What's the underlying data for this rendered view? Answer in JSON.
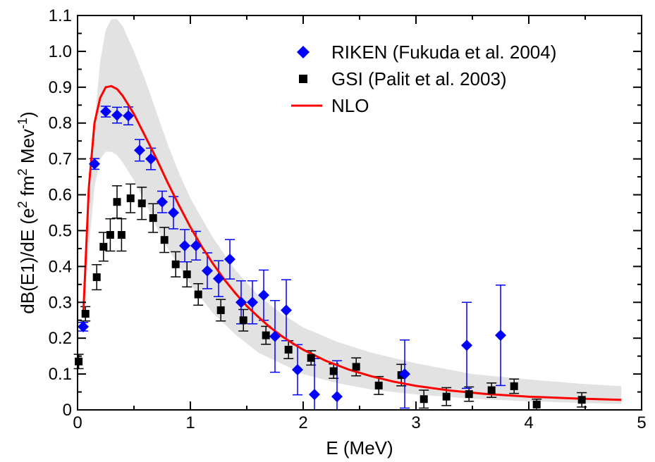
{
  "chart_data": {
    "type": "scatter",
    "xlabel": "E (MeV)",
    "ylabel_parts": [
      "dB(E1)/dE (e",
      "2",
      " fm",
      "2",
      " Mev",
      "-1",
      ")"
    ],
    "xlim": [
      0,
      5
    ],
    "ylim": [
      0,
      1.1
    ],
    "x_ticks": [
      "0",
      "1",
      "2",
      "3",
      "4",
      "5"
    ],
    "y_ticks": [
      "0",
      "0.1",
      "0.2",
      "0.3",
      "0.4",
      "0.5",
      "0.6",
      "0.7",
      "0.8",
      "0.9",
      "1.0",
      "1.1"
    ],
    "legend_position": "top-right",
    "grid": false,
    "band": {
      "color": "#e2e2e2",
      "upper": [
        [
          0.05,
          0.3
        ],
        [
          0.1,
          0.55
        ],
        [
          0.15,
          0.8
        ],
        [
          0.2,
          0.97
        ],
        [
          0.25,
          1.06
        ],
        [
          0.3,
          1.09
        ],
        [
          0.35,
          1.09
        ],
        [
          0.4,
          1.07
        ],
        [
          0.5,
          1.0
        ],
        [
          0.6,
          0.92
        ],
        [
          0.7,
          0.83
        ],
        [
          0.8,
          0.74
        ],
        [
          0.9,
          0.66
        ],
        [
          1.0,
          0.59
        ],
        [
          1.2,
          0.48
        ],
        [
          1.4,
          0.39
        ],
        [
          1.6,
          0.32
        ],
        [
          1.8,
          0.27
        ],
        [
          2.0,
          0.23
        ],
        [
          2.3,
          0.19
        ],
        [
          2.6,
          0.16
        ],
        [
          3.0,
          0.13
        ],
        [
          3.5,
          0.1
        ],
        [
          4.0,
          0.085
        ],
        [
          4.5,
          0.072
        ],
        [
          4.82,
          0.066
        ]
      ],
      "lower": [
        [
          0.05,
          0.25
        ],
        [
          0.1,
          0.45
        ],
        [
          0.15,
          0.62
        ],
        [
          0.2,
          0.7
        ],
        [
          0.25,
          0.72
        ],
        [
          0.3,
          0.72
        ],
        [
          0.35,
          0.71
        ],
        [
          0.4,
          0.69
        ],
        [
          0.5,
          0.64
        ],
        [
          0.6,
          0.58
        ],
        [
          0.7,
          0.51
        ],
        [
          0.8,
          0.45
        ],
        [
          0.9,
          0.4
        ],
        [
          1.0,
          0.35
        ],
        [
          1.2,
          0.27
        ],
        [
          1.4,
          0.21
        ],
        [
          1.6,
          0.16
        ],
        [
          1.8,
          0.13
        ],
        [
          2.0,
          0.1
        ],
        [
          2.3,
          0.075
        ],
        [
          2.6,
          0.057
        ],
        [
          3.0,
          0.043
        ],
        [
          3.5,
          0.031
        ],
        [
          4.0,
          0.024
        ],
        [
          4.5,
          0.019
        ],
        [
          4.82,
          0.017
        ]
      ]
    },
    "series": [
      {
        "name": "RIKEN (Fukuda et al. 2004)",
        "marker": "diamond",
        "color": "#0000ff",
        "errcolor": "#0000ff",
        "points": [
          [
            0.05,
            0.232,
            0.012
          ],
          [
            0.15,
            0.686,
            0.015
          ],
          [
            0.25,
            0.832,
            0.015
          ],
          [
            0.35,
            0.822,
            0.022
          ],
          [
            0.45,
            0.82,
            0.025
          ],
          [
            0.55,
            0.724,
            0.03
          ],
          [
            0.65,
            0.7,
            0.03
          ],
          [
            0.75,
            0.58,
            0.03
          ],
          [
            0.85,
            0.55,
            0.045
          ],
          [
            0.95,
            0.458,
            0.045
          ],
          [
            1.05,
            0.458,
            0.04
          ],
          [
            1.15,
            0.388,
            0.05
          ],
          [
            1.25,
            0.366,
            0.05
          ],
          [
            1.35,
            0.42,
            0.055
          ],
          [
            1.45,
            0.3,
            0.06
          ],
          [
            1.55,
            0.3,
            0.06
          ],
          [
            1.65,
            0.32,
            0.07
          ],
          [
            1.75,
            0.205,
            0.1
          ],
          [
            1.85,
            0.278,
            0.085
          ],
          [
            1.95,
            0.112,
            0.07
          ],
          [
            2.1,
            0.043,
            0.1
          ],
          [
            2.3,
            0.037,
            0.1
          ],
          [
            2.9,
            0.1,
            0.095
          ],
          [
            3.45,
            0.18,
            0.12
          ],
          [
            3.75,
            0.208,
            0.14
          ]
        ]
      },
      {
        "name": "GSI (Palit et al. 2003)",
        "marker": "square",
        "color": "#000000",
        "errcolor": "#000000",
        "points": [
          [
            0.01,
            0.135,
            0.02
          ],
          [
            0.07,
            0.268,
            0.02
          ],
          [
            0.17,
            0.37,
            0.035
          ],
          [
            0.23,
            0.455,
            0.04
          ],
          [
            0.29,
            0.488,
            0.045
          ],
          [
            0.35,
            0.58,
            0.045
          ],
          [
            0.39,
            0.488,
            0.045
          ],
          [
            0.47,
            0.59,
            0.04
          ],
          [
            0.57,
            0.576,
            0.045
          ],
          [
            0.67,
            0.535,
            0.04
          ],
          [
            0.77,
            0.474,
            0.035
          ],
          [
            0.87,
            0.406,
            0.035
          ],
          [
            0.97,
            0.378,
            0.035
          ],
          [
            1.07,
            0.322,
            0.03
          ],
          [
            1.27,
            0.278,
            0.03
          ],
          [
            1.47,
            0.25,
            0.03
          ],
          [
            1.67,
            0.208,
            0.025
          ],
          [
            1.87,
            0.168,
            0.025
          ],
          [
            2.07,
            0.145,
            0.02
          ],
          [
            2.27,
            0.108,
            0.02
          ],
          [
            2.47,
            0.12,
            0.025
          ],
          [
            2.67,
            0.068,
            0.025
          ],
          [
            2.87,
            0.097,
            0.03
          ],
          [
            3.07,
            0.03,
            0.025
          ],
          [
            3.27,
            0.037,
            0.025
          ],
          [
            3.47,
            0.044,
            0.02
          ],
          [
            3.67,
            0.055,
            0.02
          ],
          [
            3.87,
            0.066,
            0.02
          ],
          [
            4.07,
            0.015,
            0.015
          ],
          [
            4.47,
            0.028,
            0.02
          ]
        ]
      },
      {
        "name": "NLO",
        "marker": "line",
        "color": "#ff0000",
        "points": [
          [
            0.05,
            0.26
          ],
          [
            0.1,
            0.62
          ],
          [
            0.15,
            0.8
          ],
          [
            0.2,
            0.87
          ],
          [
            0.25,
            0.9
          ],
          [
            0.3,
            0.903
          ],
          [
            0.35,
            0.895
          ],
          [
            0.4,
            0.876
          ],
          [
            0.5,
            0.825
          ],
          [
            0.6,
            0.763
          ],
          [
            0.7,
            0.7
          ],
          [
            0.8,
            0.633
          ],
          [
            0.9,
            0.57
          ],
          [
            1.0,
            0.51
          ],
          [
            1.1,
            0.456
          ],
          [
            1.2,
            0.408
          ],
          [
            1.3,
            0.364
          ],
          [
            1.4,
            0.325
          ],
          [
            1.5,
            0.29
          ],
          [
            1.6,
            0.26
          ],
          [
            1.7,
            0.232
          ],
          [
            1.8,
            0.208
          ],
          [
            1.9,
            0.187
          ],
          [
            2.0,
            0.168
          ],
          [
            2.2,
            0.137
          ],
          [
            2.4,
            0.113
          ],
          [
            2.6,
            0.094
          ],
          [
            2.8,
            0.079
          ],
          [
            3.0,
            0.067
          ],
          [
            3.3,
            0.054
          ],
          [
            3.6,
            0.045
          ],
          [
            4.0,
            0.037
          ],
          [
            4.4,
            0.032
          ],
          [
            4.82,
            0.028
          ]
        ]
      }
    ]
  }
}
